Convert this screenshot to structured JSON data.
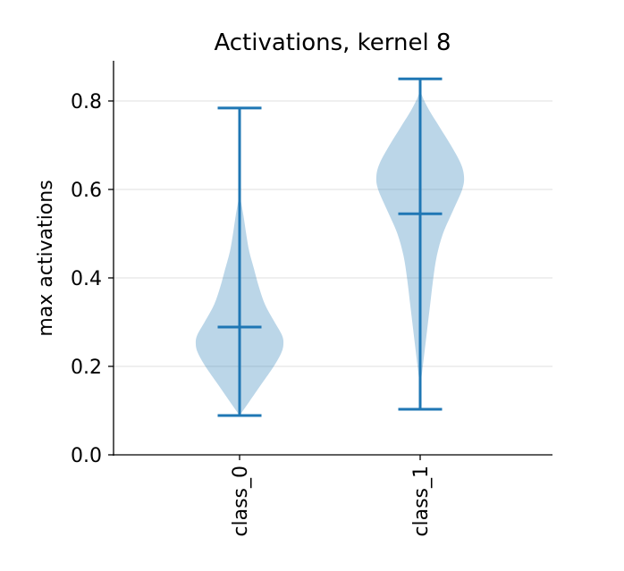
{
  "chart_data": {
    "type": "violin",
    "title": "Activations, kernel 8",
    "xlabel": "",
    "ylabel": "max activations",
    "ylim": [
      0.0,
      0.89
    ],
    "yticks": [
      0.0,
      0.2,
      0.4,
      0.6,
      0.8
    ],
    "ytick_labels": [
      "0.0",
      "0.2",
      "0.4",
      "0.6",
      "0.8"
    ],
    "grid": "horizontal",
    "categories": [
      "class_0",
      "class_1"
    ],
    "colors": {
      "body": "#1f77b4",
      "body_alpha": 0.3,
      "lines": "#1f77b4",
      "grid": "#e5e5e5",
      "axis": "#000000"
    },
    "series": [
      {
        "name": "class_0",
        "min": 0.089,
        "median": 0.289,
        "max": 0.784,
        "density_profile": [
          [
            0.089,
            0.0
          ],
          [
            0.12,
            0.22
          ],
          [
            0.16,
            0.5
          ],
          [
            0.2,
            0.78
          ],
          [
            0.23,
            0.95
          ],
          [
            0.25,
            1.0
          ],
          [
            0.27,
            0.97
          ],
          [
            0.3,
            0.8
          ],
          [
            0.34,
            0.58
          ],
          [
            0.38,
            0.44
          ],
          [
            0.42,
            0.33
          ],
          [
            0.46,
            0.22
          ],
          [
            0.5,
            0.15
          ],
          [
            0.54,
            0.09
          ],
          [
            0.58,
            0.02
          ],
          [
            0.6,
            0.0
          ]
        ]
      },
      {
        "name": "class_1",
        "min": 0.103,
        "median": 0.545,
        "max": 0.85,
        "density_profile": [
          [
            0.15,
            0.0
          ],
          [
            0.2,
            0.06
          ],
          [
            0.25,
            0.12
          ],
          [
            0.3,
            0.18
          ],
          [
            0.35,
            0.24
          ],
          [
            0.4,
            0.3
          ],
          [
            0.45,
            0.38
          ],
          [
            0.5,
            0.52
          ],
          [
            0.55,
            0.74
          ],
          [
            0.6,
            0.96
          ],
          [
            0.63,
            1.0
          ],
          [
            0.66,
            0.92
          ],
          [
            0.7,
            0.7
          ],
          [
            0.74,
            0.45
          ],
          [
            0.78,
            0.2
          ],
          [
            0.81,
            0.05
          ],
          [
            0.83,
            0.0
          ]
        ]
      }
    ]
  }
}
